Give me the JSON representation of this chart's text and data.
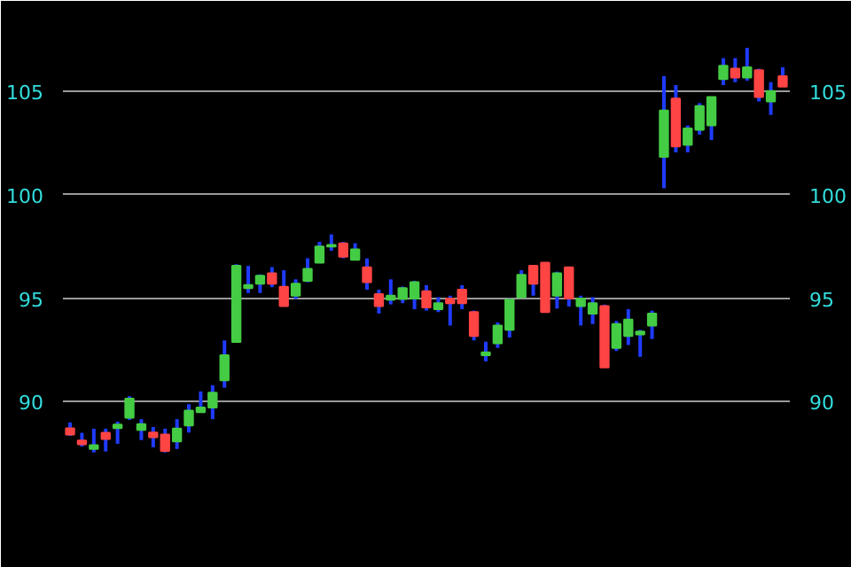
{
  "chart_data": {
    "type": "candlestick",
    "categories": [
      null,
      null,
      null,
      null,
      null,
      null,
      null,
      null,
      null,
      null,
      null,
      null,
      null,
      null,
      null,
      null,
      null,
      null,
      null,
      null,
      null,
      null,
      null,
      null,
      null,
      null,
      null,
      null,
      null,
      null,
      null,
      null,
      null,
      null,
      null,
      null,
      null,
      null,
      null,
      null,
      null,
      null,
      null,
      null,
      null,
      null,
      null,
      null,
      null,
      null,
      null,
      null,
      null,
      null,
      null,
      null,
      null,
      null,
      null,
      null,
      null
    ],
    "ohlc": [
      [
        88.71,
        89.0,
        88.35,
        88.42
      ],
      [
        88.13,
        88.5,
        87.84,
        87.94
      ],
      [
        87.72,
        88.7,
        87.55,
        87.9
      ],
      [
        88.5,
        88.7,
        87.6,
        88.2
      ],
      [
        88.73,
        89.04,
        87.97,
        88.9
      ],
      [
        89.23,
        90.27,
        89.12,
        90.15
      ],
      [
        88.64,
        89.16,
        88.15,
        88.92
      ],
      [
        88.51,
        88.78,
        87.8,
        88.29
      ],
      [
        88.42,
        88.7,
        87.55,
        87.62
      ],
      [
        88.08,
        89.16,
        87.72,
        88.7
      ],
      [
        88.85,
        89.88,
        88.51,
        89.57
      ],
      [
        89.5,
        90.5,
        89.48,
        89.72
      ],
      [
        89.72,
        90.8,
        89.16,
        90.44
      ],
      [
        91.04,
        92.96,
        90.68,
        92.24
      ],
      [
        92.89,
        96.64,
        92.89,
        96.56
      ],
      [
        95.48,
        96.56,
        95.25,
        95.63
      ],
      [
        95.7,
        96.15,
        95.25,
        96.08
      ],
      [
        96.2,
        96.5,
        95.53,
        95.7
      ],
      [
        95.55,
        96.35,
        94.62,
        94.62
      ],
      [
        95.12,
        95.91,
        94.96,
        95.7
      ],
      [
        95.84,
        96.93,
        95.77,
        96.42
      ],
      [
        96.71,
        97.72,
        96.69,
        97.5
      ],
      [
        97.5,
        98.08,
        97.29,
        97.57
      ],
      [
        97.65,
        97.72,
        96.93,
        97.0
      ],
      [
        96.85,
        97.65,
        96.85,
        97.36
      ],
      [
        96.49,
        96.92,
        95.41,
        95.77
      ],
      [
        95.2,
        95.41,
        94.26,
        94.62
      ],
      [
        94.93,
        95.91,
        94.7,
        95.12
      ],
      [
        94.96,
        95.56,
        94.76,
        95.48
      ],
      [
        94.98,
        95.84,
        94.47,
        95.77
      ],
      [
        95.34,
        95.63,
        94.4,
        94.55
      ],
      [
        94.47,
        95.05,
        94.33,
        94.76
      ],
      [
        94.98,
        95.12,
        93.68,
        94.76
      ],
      [
        95.41,
        95.63,
        94.47,
        94.76
      ],
      [
        94.33,
        94.4,
        92.96,
        93.18
      ],
      [
        92.24,
        92.9,
        91.95,
        92.38
      ],
      [
        92.82,
        93.83,
        92.6,
        93.68
      ],
      [
        93.47,
        94.98,
        93.1,
        94.93
      ],
      [
        95.05,
        96.35,
        95.05,
        96.13
      ],
      [
        96.56,
        96.56,
        95.12,
        95.7
      ],
      [
        96.71,
        96.71,
        94.33,
        94.33
      ],
      [
        95.12,
        96.28,
        94.5,
        96.2
      ],
      [
        96.49,
        96.49,
        94.6,
        94.98
      ],
      [
        94.62,
        95.12,
        93.68,
        94.98
      ],
      [
        94.26,
        95.05,
        93.75,
        94.76
      ],
      [
        94.62,
        94.69,
        91.66,
        91.66
      ],
      [
        92.6,
        93.9,
        92.45,
        93.75
      ],
      [
        93.18,
        94.47,
        92.74,
        93.97
      ],
      [
        93.25,
        93.47,
        92.17,
        93.39
      ],
      [
        93.68,
        94.4,
        93.03,
        94.26
      ],
      [
        101.83,
        105.72,
        100.31,
        104.06
      ],
      [
        104.64,
        105.29,
        102.04,
        102.33
      ],
      [
        102.4,
        103.34,
        102.04,
        103.2
      ],
      [
        103.13,
        104.42,
        102.9,
        104.28
      ],
      [
        103.34,
        104.71,
        102.64,
        104.71
      ],
      [
        105.58,
        106.59,
        105.29,
        106.22
      ],
      [
        106.08,
        106.59,
        105.43,
        105.65
      ],
      [
        105.65,
        107.09,
        105.5,
        106.15
      ],
      [
        106.01,
        106.08,
        104.5,
        104.71
      ],
      [
        104.5,
        105.43,
        103.85,
        105.0
      ],
      [
        105.72,
        106.15,
        105.22,
        105.22
      ]
    ],
    "ylim": [
      85.4,
      108.5
    ],
    "yticks": [
      90,
      95,
      100,
      105
    ],
    "y2lim": [
      85.4,
      108.5
    ],
    "y2ticks": [
      90,
      95,
      100,
      105
    ],
    "grid": "y",
    "tick_labels": "y"
  }
}
